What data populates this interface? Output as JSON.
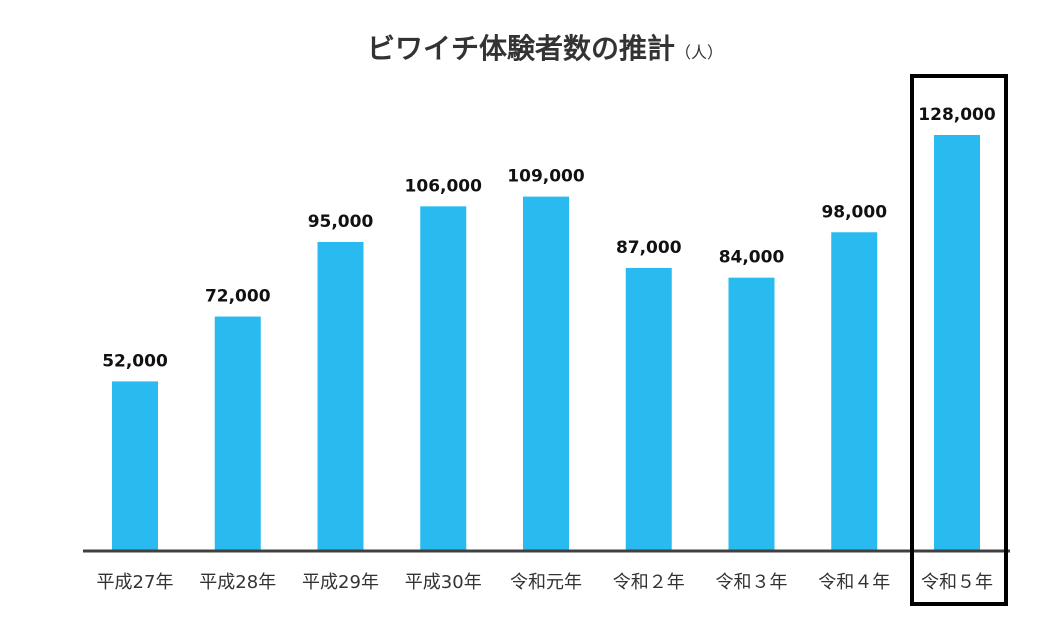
{
  "chart_data": {
    "type": "bar",
    "title": "ビワイチ体験者数の推計",
    "title_unit": "（人）",
    "categories": [
      "平成27年",
      "平成28年",
      "平成29年",
      "平成30年",
      "令和元年",
      "令和２年",
      "令和３年",
      "令和４年",
      "令和５年"
    ],
    "values": [
      52000,
      72000,
      95000,
      106000,
      109000,
      87000,
      84000,
      98000,
      128000
    ],
    "data_labels": [
      "52,000",
      "72,000",
      "95,000",
      "106,000",
      "109,000",
      "87,000",
      "84,000",
      "98,000",
      "128,000"
    ],
    "highlight_index": 8,
    "grid": false,
    "y_axis_visible": false
  },
  "colors": {
    "bar": "#29BBEF",
    "axis": "#404040",
    "highlight_box": "#000000",
    "title": "#333333",
    "value_label": "#111111",
    "category_label": "#333333"
  }
}
